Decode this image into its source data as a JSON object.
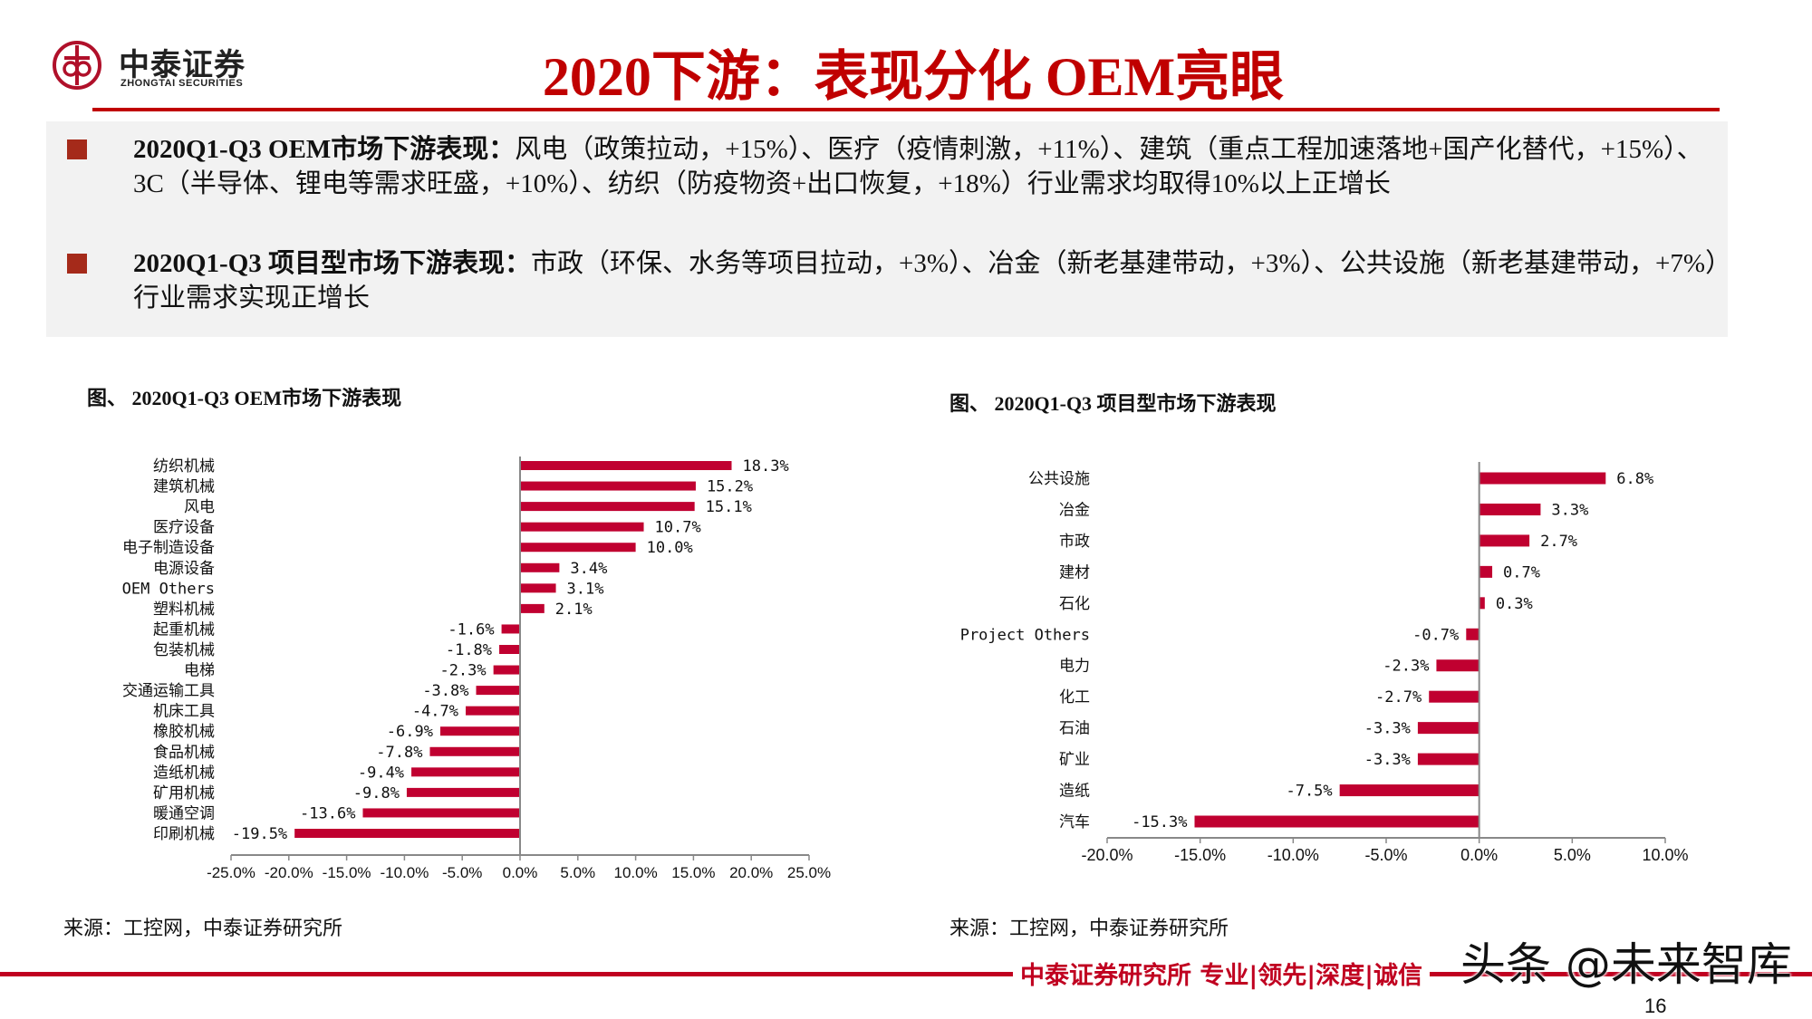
{
  "logo": {
    "name_cn": "中泰证券",
    "name_en": "ZHONGTAI SECURITIES"
  },
  "title": "2020下游：表现分化  OEM亮眼",
  "summary": {
    "bullets": [
      {
        "heading": "2020Q1-Q3 OEM市场下游表现：",
        "text": "风电（政策拉动，+15%）、医疗（疫情刺激，+11%）、建筑（重点工程加速落地+国产化替代，+15%）、3C（半导体、锂电等需求旺盛，+10%）、纺织（防疫物资+出口恢复，+18%）行业需求均取得10%以上正增长"
      },
      {
        "heading": "2020Q1-Q3 项目型市场下游表现：",
        "text": "市政（环保、水务等项目拉动，+3%）、冶金（新老基建带动，+3%）、公共设施（新老基建带动，+7%）行业需求实现正增长"
      }
    ],
    "bullet_color": "#a52a1a"
  },
  "chart_data": [
    {
      "type": "bar",
      "orientation": "horizontal",
      "title": "图、 2020Q1-Q3 OEM市场下游表现",
      "categories": [
        "纺织机械",
        "建筑机械",
        "风电",
        "医疗设备",
        "电子制造设备",
        "电源设备",
        "OEM Others",
        "塑料机械",
        "起重机械",
        "包装机械",
        "电梯",
        "交通运输工具",
        "机床工具",
        "橡胶机械",
        "食品机械",
        "造纸机械",
        "矿用机械",
        "暖通空调",
        "印刷机械"
      ],
      "values": [
        18.3,
        15.2,
        15.1,
        10.7,
        10.0,
        3.4,
        3.1,
        2.1,
        -1.6,
        -1.8,
        -2.3,
        -3.8,
        -4.7,
        -6.9,
        -7.8,
        -9.4,
        -9.8,
        -13.6,
        -19.5
      ],
      "value_labels": [
        "18.3%",
        "15.2%",
        "15.1%",
        "10.7%",
        "10.0%",
        "3.4%",
        "3.1%",
        "2.1%",
        "-1.6%",
        "-1.8%",
        "-2.3%",
        "-3.8%",
        "-4.7%",
        "-6.9%",
        "-7.8%",
        "-9.4%",
        "-9.8%",
        "-13.6%",
        "-19.5%"
      ],
      "xlim": [
        -25,
        25
      ],
      "xticks": [
        -25,
        -20,
        -15,
        -10,
        -5,
        0,
        5,
        10,
        15,
        20,
        25
      ],
      "xtick_labels": [
        "-25.0%",
        "-20.0%",
        "-15.0%",
        "-10.0%",
        "-5.0%",
        "0.0%",
        "5.0%",
        "10.0%",
        "15.0%",
        "20.0%",
        "25.0%"
      ],
      "bar_color": "#c00030",
      "grid": false,
      "source": "来源：工控网，中泰证券研究所"
    },
    {
      "type": "bar",
      "orientation": "horizontal",
      "title": "图、 2020Q1-Q3 项目型市场下游表现",
      "categories": [
        "公共设施",
        "冶金",
        "市政",
        "建材",
        "石化",
        "Project Others",
        "电力",
        "化工",
        "石油",
        "矿业",
        "造纸",
        "汽车"
      ],
      "values": [
        6.8,
        3.3,
        2.7,
        0.7,
        0.3,
        -0.7,
        -2.3,
        -2.7,
        -3.3,
        -3.3,
        -7.5,
        -15.3
      ],
      "value_labels": [
        "6.8%",
        "3.3%",
        "2.7%",
        "0.7%",
        "0.3%",
        "-0.7%",
        "-2.3%",
        "-2.7%",
        "-3.3%",
        "-3.3%",
        "-7.5%",
        "-15.3%"
      ],
      "xlim": [
        -20,
        10
      ],
      "xticks": [
        -20,
        -15,
        -10,
        -5,
        0,
        5,
        10
      ],
      "xtick_labels": [
        "-20.0%",
        "-15.0%",
        "-10.0%",
        "-5.0%",
        "0.0%",
        "5.0%",
        "10.0%"
      ],
      "bar_color": "#c00030",
      "grid": false,
      "source": "来源：工控网，中泰证券研究所"
    }
  ],
  "footer": {
    "text": "中泰证券研究所 专业|领先|深度|诚信",
    "page": "16",
    "watermark": "头条 @未来智库",
    "accent": "#c00020"
  }
}
